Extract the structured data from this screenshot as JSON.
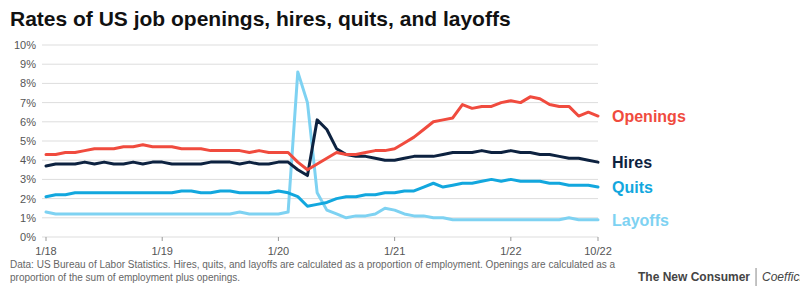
{
  "chart_data": {
    "type": "line",
    "title": "Rates of US job openings, hires, quits, and layoffs",
    "note": "Data: US Bureau of Labor Statistics. Hires, quits, and layoffs are calculated as a proportion of employment. Openings are calculated as a proportion of the sum of employment plus openings.",
    "logos": [
      "The New Consumer",
      "Coefficient"
    ],
    "categories": [
      "1/18",
      null,
      null,
      null,
      null,
      null,
      null,
      null,
      null,
      null,
      null,
      null,
      "1/19",
      null,
      null,
      null,
      null,
      null,
      null,
      null,
      null,
      null,
      null,
      null,
      "1/20",
      null,
      null,
      null,
      null,
      null,
      null,
      null,
      null,
      null,
      null,
      null,
      "1/21",
      null,
      null,
      null,
      null,
      null,
      null,
      null,
      null,
      null,
      null,
      null,
      "1/22",
      null,
      null,
      null,
      null,
      null,
      null,
      null,
      null,
      "10/22"
    ],
    "series": [
      {
        "name": "Openings",
        "color": "#f04b3e",
        "values": [
          4.3,
          4.3,
          4.4,
          4.4,
          4.5,
          4.6,
          4.6,
          4.6,
          4.7,
          4.7,
          4.8,
          4.7,
          4.7,
          4.7,
          4.6,
          4.6,
          4.6,
          4.5,
          4.5,
          4.5,
          4.5,
          4.4,
          4.5,
          4.4,
          4.4,
          4.4,
          3.9,
          3.5,
          3.8,
          4.1,
          4.4,
          4.3,
          4.3,
          4.4,
          4.5,
          4.5,
          4.6,
          4.9,
          5.2,
          5.6,
          6.0,
          6.1,
          6.2,
          6.9,
          6.7,
          6.8,
          6.8,
          7.0,
          7.1,
          7.0,
          7.3,
          7.2,
          6.9,
          6.8,
          6.8,
          6.3,
          6.5,
          6.3
        ]
      },
      {
        "name": "Hires",
        "color": "#0d2240",
        "values": [
          3.7,
          3.8,
          3.8,
          3.8,
          3.9,
          3.8,
          3.9,
          3.8,
          3.8,
          3.9,
          3.8,
          3.9,
          3.9,
          3.8,
          3.8,
          3.8,
          3.8,
          3.9,
          3.9,
          3.9,
          3.8,
          3.9,
          3.8,
          3.8,
          3.9,
          3.9,
          3.5,
          3.2,
          6.1,
          5.6,
          4.6,
          4.3,
          4.2,
          4.2,
          4.1,
          4.0,
          4.0,
          4.1,
          4.2,
          4.2,
          4.2,
          4.3,
          4.4,
          4.4,
          4.4,
          4.5,
          4.4,
          4.4,
          4.5,
          4.4,
          4.4,
          4.3,
          4.3,
          4.2,
          4.1,
          4.1,
          4.0,
          3.9
        ]
      },
      {
        "name": "Quits",
        "color": "#12a7de",
        "values": [
          2.1,
          2.2,
          2.2,
          2.3,
          2.3,
          2.3,
          2.3,
          2.3,
          2.3,
          2.3,
          2.3,
          2.3,
          2.3,
          2.3,
          2.4,
          2.4,
          2.3,
          2.3,
          2.4,
          2.4,
          2.3,
          2.3,
          2.3,
          2.3,
          2.4,
          2.3,
          2.1,
          1.6,
          1.7,
          1.8,
          2.0,
          2.1,
          2.1,
          2.2,
          2.2,
          2.3,
          2.3,
          2.4,
          2.4,
          2.6,
          2.8,
          2.6,
          2.7,
          2.8,
          2.8,
          2.9,
          3.0,
          2.9,
          3.0,
          2.9,
          2.9,
          2.9,
          2.8,
          2.8,
          2.7,
          2.7,
          2.7,
          2.6
        ]
      },
      {
        "name": "Layoffs",
        "color": "#7ed2f2",
        "values": [
          1.3,
          1.2,
          1.2,
          1.2,
          1.2,
          1.2,
          1.2,
          1.2,
          1.2,
          1.2,
          1.2,
          1.2,
          1.2,
          1.2,
          1.2,
          1.2,
          1.2,
          1.2,
          1.2,
          1.2,
          1.3,
          1.2,
          1.2,
          1.2,
          1.2,
          1.3,
          8.6,
          7.0,
          2.3,
          1.4,
          1.2,
          1.0,
          1.1,
          1.1,
          1.2,
          1.5,
          1.4,
          1.2,
          1.1,
          1.1,
          1.0,
          1.0,
          0.9,
          0.9,
          0.9,
          0.9,
          0.9,
          0.9,
          0.9,
          0.9,
          0.9,
          0.9,
          0.9,
          0.9,
          1.0,
          0.9,
          0.9,
          0.9
        ]
      }
    ],
    "ylim": [
      0,
      10
    ],
    "yticks": [
      {
        "value": 0,
        "label": "0%"
      },
      {
        "value": 1,
        "label": "1%"
      },
      {
        "value": 2,
        "label": "2%"
      },
      {
        "value": 3,
        "label": "3%"
      },
      {
        "value": 4,
        "label": "4%"
      },
      {
        "value": 5,
        "label": "5%"
      },
      {
        "value": 6,
        "label": "6%"
      },
      {
        "value": 7,
        "label": "7%"
      },
      {
        "value": 8,
        "label": "8%"
      },
      {
        "value": 9,
        "label": "9%"
      },
      {
        "value": 10,
        "label": "10%"
      }
    ],
    "grid": true
  }
}
